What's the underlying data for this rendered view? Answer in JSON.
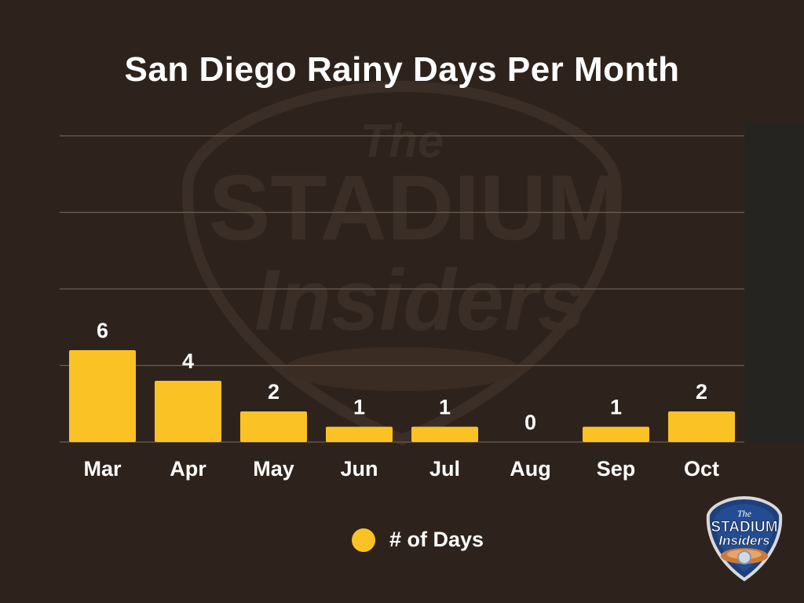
{
  "chart_data": {
    "type": "bar",
    "title": "San Diego Rainy Days Per Month",
    "categories": [
      "Mar",
      "Apr",
      "May",
      "Jun",
      "Jul",
      "Aug",
      "Sep",
      "Oct"
    ],
    "series": [
      {
        "name": "# of Days",
        "values": [
          6,
          4,
          2,
          1,
          1,
          0,
          1,
          2
        ],
        "color": "#fbc226"
      }
    ],
    "xlabel": "",
    "ylabel": "",
    "ylim": [
      0,
      20
    ],
    "grid": true,
    "legend_position": "bottom-center",
    "data_labels": true
  },
  "colors": {
    "background": "#2e231c",
    "bar": "#fbc226",
    "text": "#ffffff"
  },
  "watermark": {
    "brand_small": "The",
    "brand_main": "STADIUM",
    "brand_script": "Insiders"
  },
  "logo_badge": {
    "icon": "stadium-insiders-logo-icon",
    "line1": "The",
    "line2": "STADIUM",
    "line3": "Insiders"
  }
}
